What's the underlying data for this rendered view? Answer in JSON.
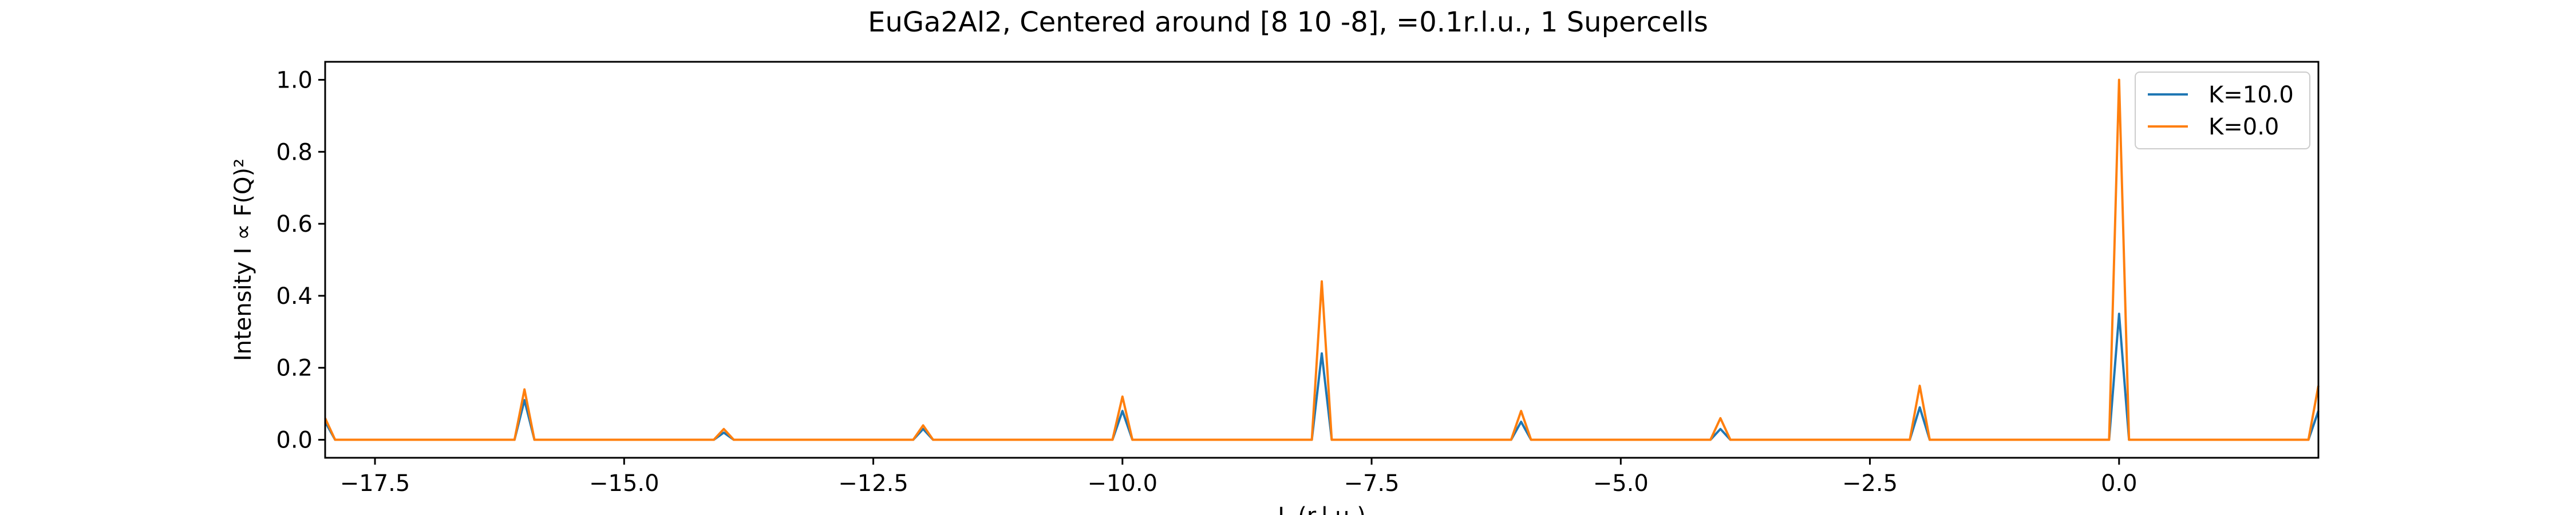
{
  "chart_data": {
    "type": "line",
    "title": "EuGa2Al2, Centered around [8 10 -8], =0.1r.l.u., 1 Supercells",
    "xlabel": "L (r.l.u.)",
    "ylabel": "Intensity I ∝ F(Q)²",
    "xlim": [
      -18,
      2
    ],
    "ylim": [
      -0.05,
      1.05
    ],
    "x_ticks": [
      -17.5,
      -15.0,
      -12.5,
      -10.0,
      -7.5,
      -5.0,
      -2.5,
      0.0
    ],
    "x_tick_labels": [
      "−17.5",
      "−15.0",
      "−12.5",
      "−10.0",
      "−7.5",
      "−5.0",
      "−2.5",
      "0.0"
    ],
    "y_ticks": [
      0.0,
      0.2,
      0.4,
      0.6,
      0.8,
      1.0
    ],
    "y_tick_labels": [
      "0.0",
      "0.2",
      "0.4",
      "0.6",
      "0.8",
      "1.0"
    ],
    "grid": false,
    "legend_position": "top-right",
    "series": [
      {
        "name": "K=10.0",
        "color": "#1f77b4",
        "x": [
          -18.0,
          -17.9,
          -16.1,
          -16.0,
          -15.9,
          -14.1,
          -14.0,
          -13.9,
          -12.1,
          -12.0,
          -11.9,
          -10.1,
          -10.0,
          -9.9,
          -8.1,
          -8.0,
          -7.9,
          -6.1,
          -6.0,
          -5.9,
          -4.1,
          -4.0,
          -3.9,
          -2.1,
          -2.0,
          -1.9,
          -0.1,
          0.0,
          0.1,
          1.9,
          2.0
        ],
        "y": [
          0.05,
          0.0,
          0.0,
          0.11,
          0.0,
          0.0,
          0.02,
          0.0,
          0.0,
          0.03,
          0.0,
          0.0,
          0.08,
          0.0,
          0.0,
          0.24,
          0.0,
          0.0,
          0.05,
          0.0,
          0.0,
          0.03,
          0.0,
          0.0,
          0.09,
          0.0,
          0.0,
          0.35,
          0.0,
          0.0,
          0.08
        ]
      },
      {
        "name": "K=0.0",
        "color": "#ff7f0e",
        "x": [
          -18.0,
          -17.9,
          -16.1,
          -16.0,
          -15.9,
          -14.1,
          -14.0,
          -13.9,
          -12.1,
          -12.0,
          -11.9,
          -10.1,
          -10.0,
          -9.9,
          -8.1,
          -8.0,
          -7.9,
          -6.1,
          -6.0,
          -5.9,
          -4.1,
          -4.0,
          -3.9,
          -2.1,
          -2.0,
          -1.9,
          -0.1,
          0.0,
          0.1,
          1.9,
          2.0
        ],
        "y": [
          0.06,
          0.0,
          0.0,
          0.14,
          0.0,
          0.0,
          0.03,
          0.0,
          0.0,
          0.04,
          0.0,
          0.0,
          0.12,
          0.0,
          0.0,
          0.44,
          0.0,
          0.0,
          0.08,
          0.0,
          0.0,
          0.06,
          0.0,
          0.0,
          0.15,
          0.0,
          0.0,
          1.0,
          0.0,
          0.0,
          0.15
        ]
      }
    ]
  }
}
